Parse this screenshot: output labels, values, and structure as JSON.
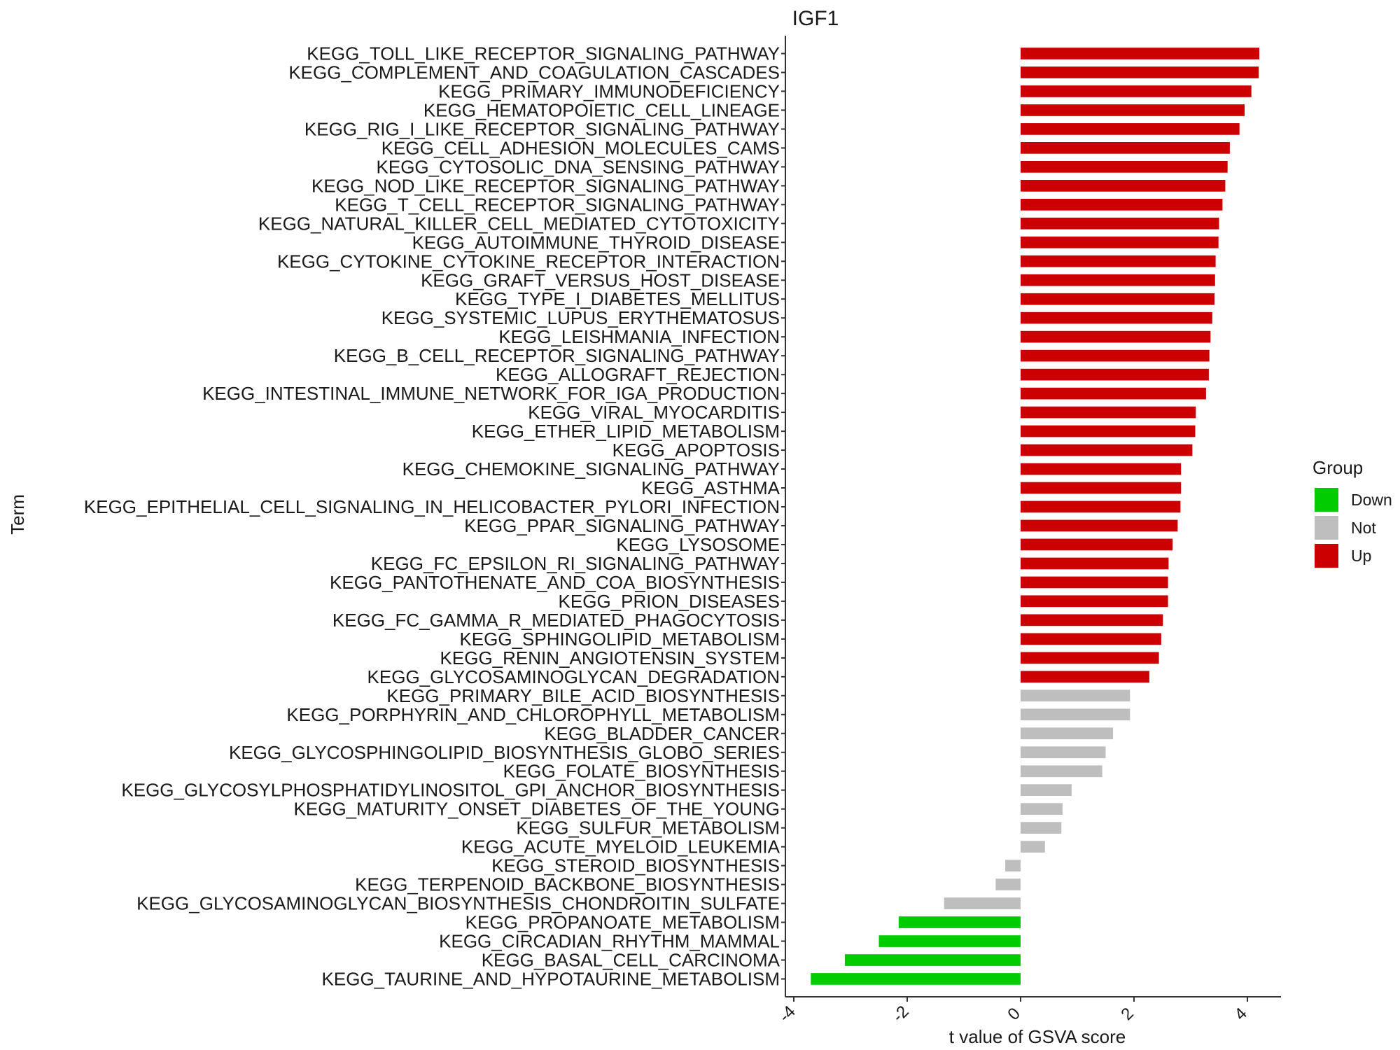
{
  "chart_data": {
    "type": "bar",
    "orientation": "horizontal",
    "title": "IGF1",
    "xlabel": "t value of GSVA score",
    "ylabel": "Term",
    "xlim": [
      -4.2,
      4.6
    ],
    "xticks": [
      -4,
      -2,
      0,
      2,
      4
    ],
    "xtick_labels": [
      "-4",
      "-2",
      "0",
      "2",
      "4"
    ],
    "grid": false,
    "legend": {
      "title": "Group",
      "placement": "right",
      "entries": [
        {
          "label": "Down",
          "color": "#00cc00"
        },
        {
          "label": "Not",
          "color": "#bebebe"
        },
        {
          "label": "Up",
          "color": "#cc0000"
        }
      ]
    },
    "categories": [
      "KEGG_TOLL_LIKE_RECEPTOR_SIGNALING_PATHWAY",
      "KEGG_COMPLEMENT_AND_COAGULATION_CASCADES",
      "KEGG_PRIMARY_IMMUNODEFICIENCY",
      "KEGG_HEMATOPOIETIC_CELL_LINEAGE",
      "KEGG_RIG_I_LIKE_RECEPTOR_SIGNALING_PATHWAY",
      "KEGG_CELL_ADHESION_MOLECULES_CAMS",
      "KEGG_CYTOSOLIC_DNA_SENSING_PATHWAY",
      "KEGG_NOD_LIKE_RECEPTOR_SIGNALING_PATHWAY",
      "KEGG_T_CELL_RECEPTOR_SIGNALING_PATHWAY",
      "KEGG_NATURAL_KILLER_CELL_MEDIATED_CYTOTOXICITY",
      "KEGG_AUTOIMMUNE_THYROID_DISEASE",
      "KEGG_CYTOKINE_CYTOKINE_RECEPTOR_INTERACTION",
      "KEGG_GRAFT_VERSUS_HOST_DISEASE",
      "KEGG_TYPE_I_DIABETES_MELLITUS",
      "KEGG_SYSTEMIC_LUPUS_ERYTHEMATOSUS",
      "KEGG_LEISHMANIA_INFECTION",
      "KEGG_B_CELL_RECEPTOR_SIGNALING_PATHWAY",
      "KEGG_ALLOGRAFT_REJECTION",
      "KEGG_INTESTINAL_IMMUNE_NETWORK_FOR_IGA_PRODUCTION",
      "KEGG_VIRAL_MYOCARDITIS",
      "KEGG_ETHER_LIPID_METABOLISM",
      "KEGG_APOPTOSIS",
      "KEGG_CHEMOKINE_SIGNALING_PATHWAY",
      "KEGG_ASTHMA",
      "KEGG_EPITHELIAL_CELL_SIGNALING_IN_HELICOBACTER_PYLORI_INFECTION",
      "KEGG_PPAR_SIGNALING_PATHWAY",
      "KEGG_LYSOSOME",
      "KEGG_FC_EPSILON_RI_SIGNALING_PATHWAY",
      "KEGG_PANTOTHENATE_AND_COA_BIOSYNTHESIS",
      "KEGG_PRION_DISEASES",
      "KEGG_FC_GAMMA_R_MEDIATED_PHAGOCYTOSIS",
      "KEGG_SPHINGOLIPID_METABOLISM",
      "KEGG_RENIN_ANGIOTENSIN_SYSTEM",
      "KEGG_GLYCOSAMINOGLYCAN_DEGRADATION",
      "KEGG_PRIMARY_BILE_ACID_BIOSYNTHESIS",
      "KEGG_PORPHYRIN_AND_CHLOROPHYLL_METABOLISM",
      "KEGG_BLADDER_CANCER",
      "KEGG_GLYCOSPHINGOLIPID_BIOSYNTHESIS_GLOBO_SERIES",
      "KEGG_FOLATE_BIOSYNTHESIS",
      "KEGG_GLYCOSYLPHOSPHATIDYLINOSITOL_GPI_ANCHOR_BIOSYNTHESIS",
      "KEGG_MATURITY_ONSET_DIABETES_OF_THE_YOUNG",
      "KEGG_SULFUR_METABOLISM",
      "KEGG_ACUTE_MYELOID_LEUKEMIA",
      "KEGG_STEROID_BIOSYNTHESIS",
      "KEGG_TERPENOID_BACKBONE_BIOSYNTHESIS",
      "KEGG_GLYCOSAMINOGLYCAN_BIOSYNTHESIS_CHONDROITIN_SULFATE",
      "KEGG_PROPANOATE_METABOLISM",
      "KEGG_CIRCADIAN_RHYTHM_MAMMAL",
      "KEGG_BASAL_CELL_CARCINOMA",
      "KEGG_TAURINE_AND_HYPOTAURINE_METABOLISM"
    ],
    "values": [
      4.21,
      4.2,
      4.07,
      3.95,
      3.86,
      3.69,
      3.65,
      3.61,
      3.56,
      3.5,
      3.49,
      3.44,
      3.43,
      3.42,
      3.38,
      3.35,
      3.33,
      3.32,
      3.27,
      3.09,
      3.08,
      3.03,
      2.83,
      2.83,
      2.82,
      2.77,
      2.68,
      2.61,
      2.6,
      2.6,
      2.51,
      2.48,
      2.44,
      2.27,
      1.93,
      1.93,
      1.63,
      1.5,
      1.44,
      0.9,
      0.74,
      0.72,
      0.43,
      -0.27,
      -0.44,
      -1.35,
      -2.15,
      -2.5,
      -3.1,
      -3.7
    ],
    "groups": [
      "Up",
      "Up",
      "Up",
      "Up",
      "Up",
      "Up",
      "Up",
      "Up",
      "Up",
      "Up",
      "Up",
      "Up",
      "Up",
      "Up",
      "Up",
      "Up",
      "Up",
      "Up",
      "Up",
      "Up",
      "Up",
      "Up",
      "Up",
      "Up",
      "Up",
      "Up",
      "Up",
      "Up",
      "Up",
      "Up",
      "Up",
      "Up",
      "Up",
      "Up",
      "Not",
      "Not",
      "Not",
      "Not",
      "Not",
      "Not",
      "Not",
      "Not",
      "Not",
      "Not",
      "Not",
      "Not",
      "Down",
      "Down",
      "Down",
      "Down"
    ]
  }
}
